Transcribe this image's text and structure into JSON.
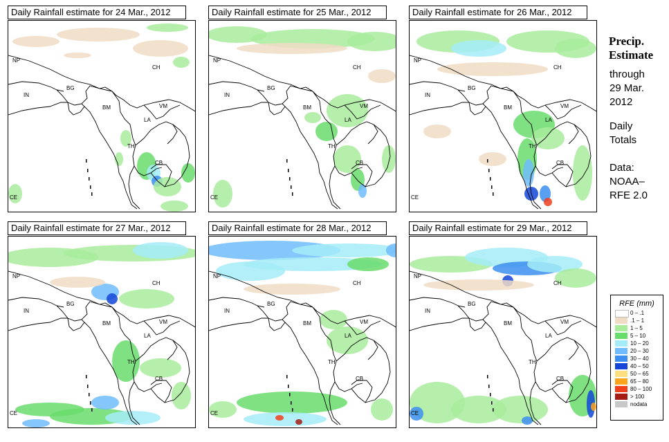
{
  "panels": [
    {
      "title": "Daily Rainfall estimate for  24 Mar., 2012",
      "rain_pattern": "24"
    },
    {
      "title": "Daily Rainfall estimate for  25 Mar., 2012",
      "rain_pattern": "25"
    },
    {
      "title": "Daily Rainfall estimate for  26 Mar., 2012",
      "rain_pattern": "26"
    },
    {
      "title": "Daily Rainfall estimate for  27 Mar., 2012",
      "rain_pattern": "27"
    },
    {
      "title": "Daily Rainfall estimate for  28 Mar., 2012",
      "rain_pattern": "28"
    },
    {
      "title": "Daily Rainfall estimate for  29 Mar., 2012",
      "rain_pattern": "29"
    }
  ],
  "map_labels": [
    "NP",
    "CH",
    "IN",
    "BG",
    "BM",
    "VM",
    "LA",
    "TH",
    "CB",
    "CE"
  ],
  "sidebar": {
    "title_line1": "Precip.",
    "title_line2": "Estimate",
    "through_line1": "through",
    "through_line2": "29 Mar.",
    "through_line3": "2012",
    "totals_line1": "Daily",
    "totals_line2": "Totals",
    "data_line1": "Data:",
    "data_line2": "NOAA–",
    "data_line3": "RFE 2.0"
  },
  "legend": {
    "title": "RFE (mm)",
    "items": [
      {
        "label": "0 – .1",
        "color": "#ffffff"
      },
      {
        "label": ".1 – 1",
        "color": "#f0dcc4"
      },
      {
        "label": "1 – 5",
        "color": "#a8ec9c"
      },
      {
        "label": "5 – 10",
        "color": "#68dc6c"
      },
      {
        "label": "10 – 20",
        "color": "#a4ecf8"
      },
      {
        "label": "20 – 30",
        "color": "#70bcfc"
      },
      {
        "label": "30 – 40",
        "color": "#3c8ef0"
      },
      {
        "label": "40 – 50",
        "color": "#1446d8"
      },
      {
        "label": "50 – 65",
        "color": "#fce080"
      },
      {
        "label": "65 – 80",
        "color": "#fca41c"
      },
      {
        "label": "80 – 100",
        "color": "#f0401c"
      },
      {
        "label": "> 100",
        "color": "#a41c14"
      },
      {
        "label": "nodata",
        "color": "#c8c8c8"
      }
    ]
  }
}
